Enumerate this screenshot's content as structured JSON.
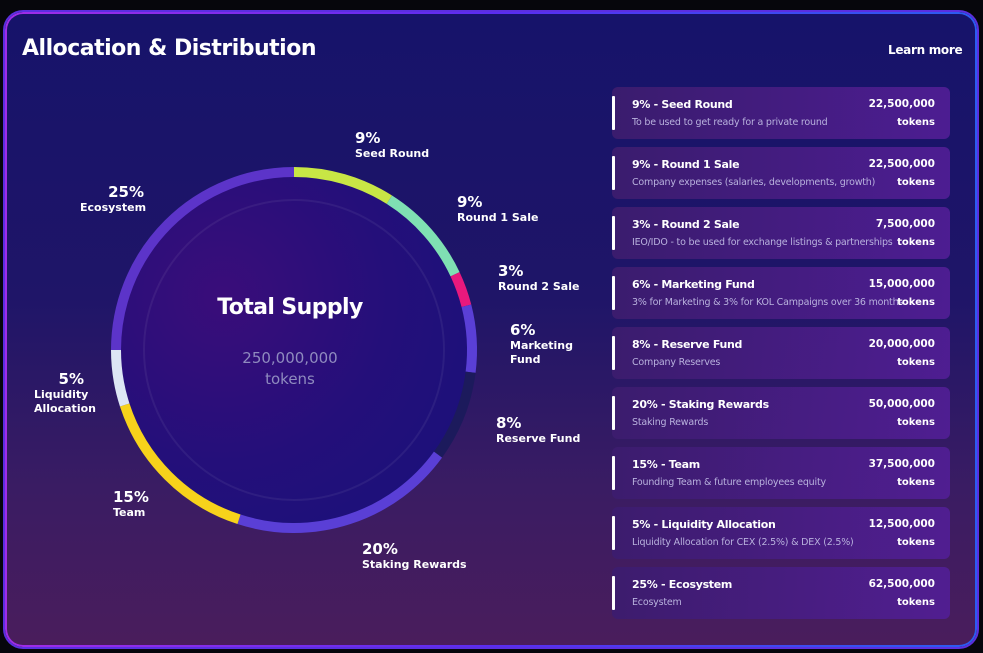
{
  "header": {
    "title": "Allocation & Distribution",
    "link": "Learn more"
  },
  "center": {
    "title": "Total Supply",
    "value": "250,000,000",
    "unit": "tokens"
  },
  "chart_data": {
    "type": "donut",
    "start_category": "Seed Round",
    "categories": [
      "Seed Round",
      "Round 1 Sale",
      "Round 2 Sale",
      "Marketing Fund",
      "Reserve Fund",
      "Staking Rewards",
      "Team",
      "Liquidity Allocation",
      "Ecosystem"
    ],
    "values": [
      9,
      9,
      3,
      6,
      8,
      20,
      15,
      5,
      25
    ],
    "colors": [
      "#c8e645",
      "#7fe0b3",
      "#e8197d",
      "#5a3fd6",
      "#1c1a5c",
      "#5a3fd6",
      "#f7d21b",
      "#dde6f5",
      "#5c34c9"
    ],
    "labels": [
      {
        "pct": "9%",
        "name": "Seed Round"
      },
      {
        "pct": "9%",
        "name": "Round 1 Sale"
      },
      {
        "pct": "3%",
        "name": "Round 2 Sale"
      },
      {
        "pct": "6%",
        "name": "Marketing Fund"
      },
      {
        "pct": "8%",
        "name": "Reserve Fund"
      },
      {
        "pct": "20%",
        "name": "Staking Rewards"
      },
      {
        "pct": "15%",
        "name": "Team"
      },
      {
        "pct": "5%",
        "name": "Liquidity Allocation"
      },
      {
        "pct": "25%",
        "name": "Ecosystem"
      }
    ]
  },
  "allocations": [
    {
      "title": "9% - Seed Round",
      "desc": "To be used to get ready for a private round",
      "amount": "22,500,000",
      "unit": "tokens"
    },
    {
      "title": "9% - Round 1 Sale",
      "desc": "Company expenses (salaries, developments, growth)",
      "amount": "22,500,000",
      "unit": "tokens"
    },
    {
      "title": "3% - Round 2 Sale",
      "desc": "IEO/IDO - to be used for exchange listings & partnerships",
      "amount": "7,500,000",
      "unit": "tokens"
    },
    {
      "title": "6% - Marketing Fund",
      "desc": "3% for Marketing & 3% for KOL Campaigns over 36 months",
      "amount": "15,000,000",
      "unit": "tokens"
    },
    {
      "title": "8% - Reserve Fund",
      "desc": "Company Reserves",
      "amount": "20,000,000",
      "unit": "tokens"
    },
    {
      "title": "20% - Staking Rewards",
      "desc": "Staking Rewards",
      "amount": "50,000,000",
      "unit": "tokens"
    },
    {
      "title": "15% - Team",
      "desc": "Founding Team & future employees equity",
      "amount": "37,500,000",
      "unit": "tokens"
    },
    {
      "title": "5% - Liquidity Allocation",
      "desc": "Liquidity Allocation for CEX (2.5%) & DEX (2.5%)",
      "amount": "12,500,000",
      "unit": "tokens"
    },
    {
      "title": "25% - Ecosystem",
      "desc": "Ecosystem",
      "amount": "62,500,000",
      "unit": "tokens"
    }
  ]
}
